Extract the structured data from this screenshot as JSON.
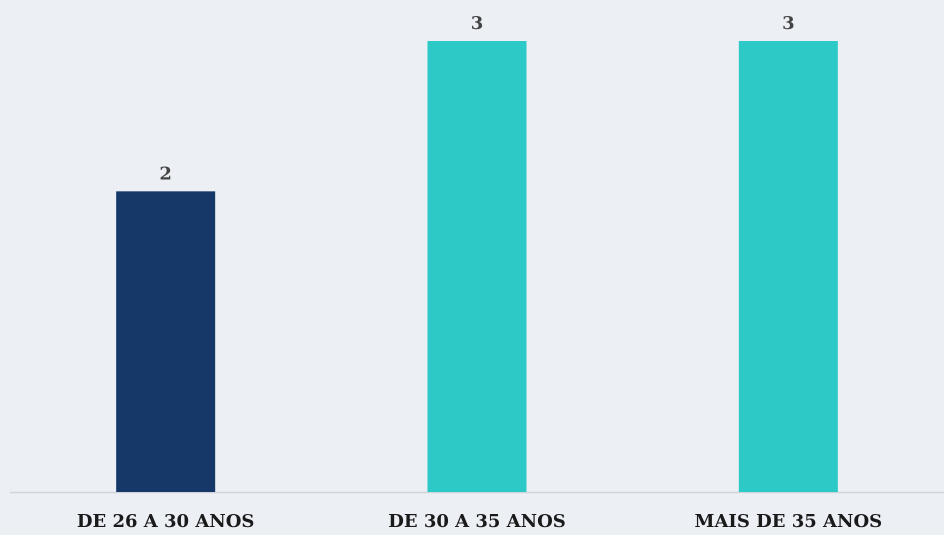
{
  "chart_data": {
    "type": "bar",
    "categories": [
      "DE 26 A 30 ANOS",
      "DE 30 A 35 ANOS",
      "MAIS DE 35 ANOS"
    ],
    "values": [
      2,
      3,
      3
    ],
    "colors": [
      "#153868",
      "#2cc9c7",
      "#2cc9c7"
    ],
    "ylim": [
      0,
      3
    ],
    "grid": false,
    "legend": "none",
    "data_labels": true
  },
  "background_color": "#eceff4",
  "axis_color": "#cfd3da"
}
